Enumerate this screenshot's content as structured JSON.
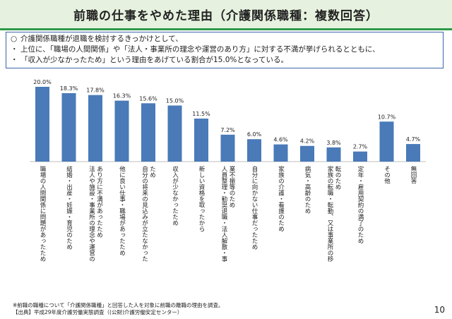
{
  "slide": {
    "title": "前職の仕事をやめた理由（介護関係職種：複数回答）",
    "summary": [
      {
        "bullet": "○",
        "text": "介護関係職種が退職を検討するきっかけとして、"
      },
      {
        "bullet": "・",
        "text": "上位に、「職場の人間関係」や「法人・事業所の理念や運営のあり方」に対する不満が挙げられるとともに、"
      },
      {
        "bullet": "・",
        "text": "「収入が少なかったため」という理由をあげている割合が15.0%となっている。"
      }
    ],
    "footnotes": [
      "※前職の職種について「介護関係職種」と回答した人を対象に前職の離職の理由を調査。",
      "【出典】平成29年度介護労働実態調査（(公財)介護労働安定センター）"
    ],
    "page_number": "10"
  },
  "chart_data": {
    "type": "bar",
    "colors": {
      "bar": "#4a7ab8"
    },
    "categories": [
      "職場の人間関係に問題があったため",
      "結婚・出産・妊娠・育児のため",
      "法人や施設・事業所の理念や運営のあり方に不満があったため",
      "他に良い仕事・職場があったため",
      "自分の将来の見込みが立たなかったため",
      "収入が少なかったため",
      "新しい資格を取ったから",
      "人員整理・勧奨退職・法人解散・事業不振等のため",
      "自分に向かない仕事だったため",
      "家族の介護・看護のため",
      "病気・高齢のため",
      "家族の転職・転勤、又は事業所の移転のため",
      "定年・雇用契約の満了のため",
      "その他",
      "無回答"
    ],
    "label_lines": [
      [
        "職場の人間関係に問題があったため"
      ],
      [
        "結婚・出産・妊娠・育児のため"
      ],
      [
        "法人や施設・事業所の理念や運営の",
        "あり方に不満があったため"
      ],
      [
        "他に良い仕事・職場があったため"
      ],
      [
        "自分の将来の見込みが立たなかった",
        "ため"
      ],
      [
        "収入が少なかったため"
      ],
      [
        "新しい資格を取ったから"
      ],
      [
        "人員整理・勧奨退職・法人解散・事",
        "業不振等のため"
      ],
      [
        "自分に向かない仕事だったため"
      ],
      [
        "家族の介護・看護のため"
      ],
      [
        "病気・高齢のため"
      ],
      [
        "家族の転職・転勤、又は事業所の移",
        "転のため"
      ],
      [
        "定年・雇用契約の満了のため"
      ],
      [
        "その他"
      ],
      [
        "無回答"
      ]
    ],
    "values": [
      20.0,
      18.3,
      17.8,
      16.3,
      15.6,
      15.0,
      11.5,
      7.2,
      6.0,
      4.6,
      4.2,
      3.8,
      2.7,
      10.7,
      4.7
    ],
    "value_labels": [
      "20.0%",
      "18.3%",
      "17.8%",
      "16.3%",
      "15.6%",
      "15.0%",
      "11.5%",
      "7.2%",
      "6.0%",
      "4.6%",
      "4.2%",
      "3.8%",
      "2.7%",
      "10.7%",
      "4.7%"
    ],
    "ylim": [
      0,
      20
    ],
    "title": "",
    "xlabel": "",
    "ylabel": ""
  }
}
